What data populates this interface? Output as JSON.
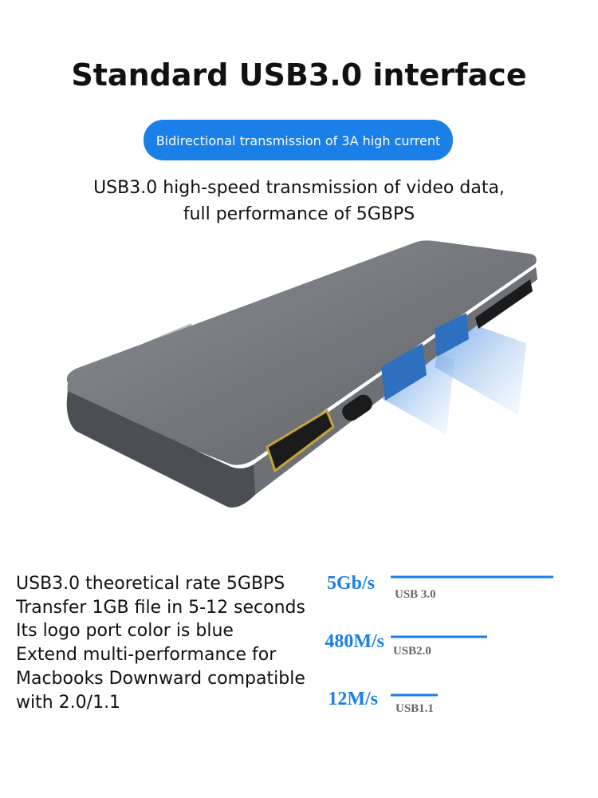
{
  "header": {
    "title": "Standard USB3.0 interface",
    "badge": "Bidirectional transmission of 3A high current",
    "subtitle": [
      "USB3.0 high-speed transmission of video data,",
      "full performance of 5GBPS"
    ]
  },
  "specs": {
    "lines": [
      "USB3.0 theoretical rate 5GBPS",
      "Transfer 1GB file in 5-12 seconds",
      "Its logo port color is blue",
      "Extend multi-performance for",
      "Macbooks Downward compatible",
      "with 2.0/1.1"
    ]
  },
  "speeds": [
    {
      "rate": "5Gb/s",
      "label": "USB 3.0"
    },
    {
      "rate": "480M/s",
      "label": "USB2.0"
    },
    {
      "rate": "12M/s",
      "label": "USB1.1"
    }
  ]
}
